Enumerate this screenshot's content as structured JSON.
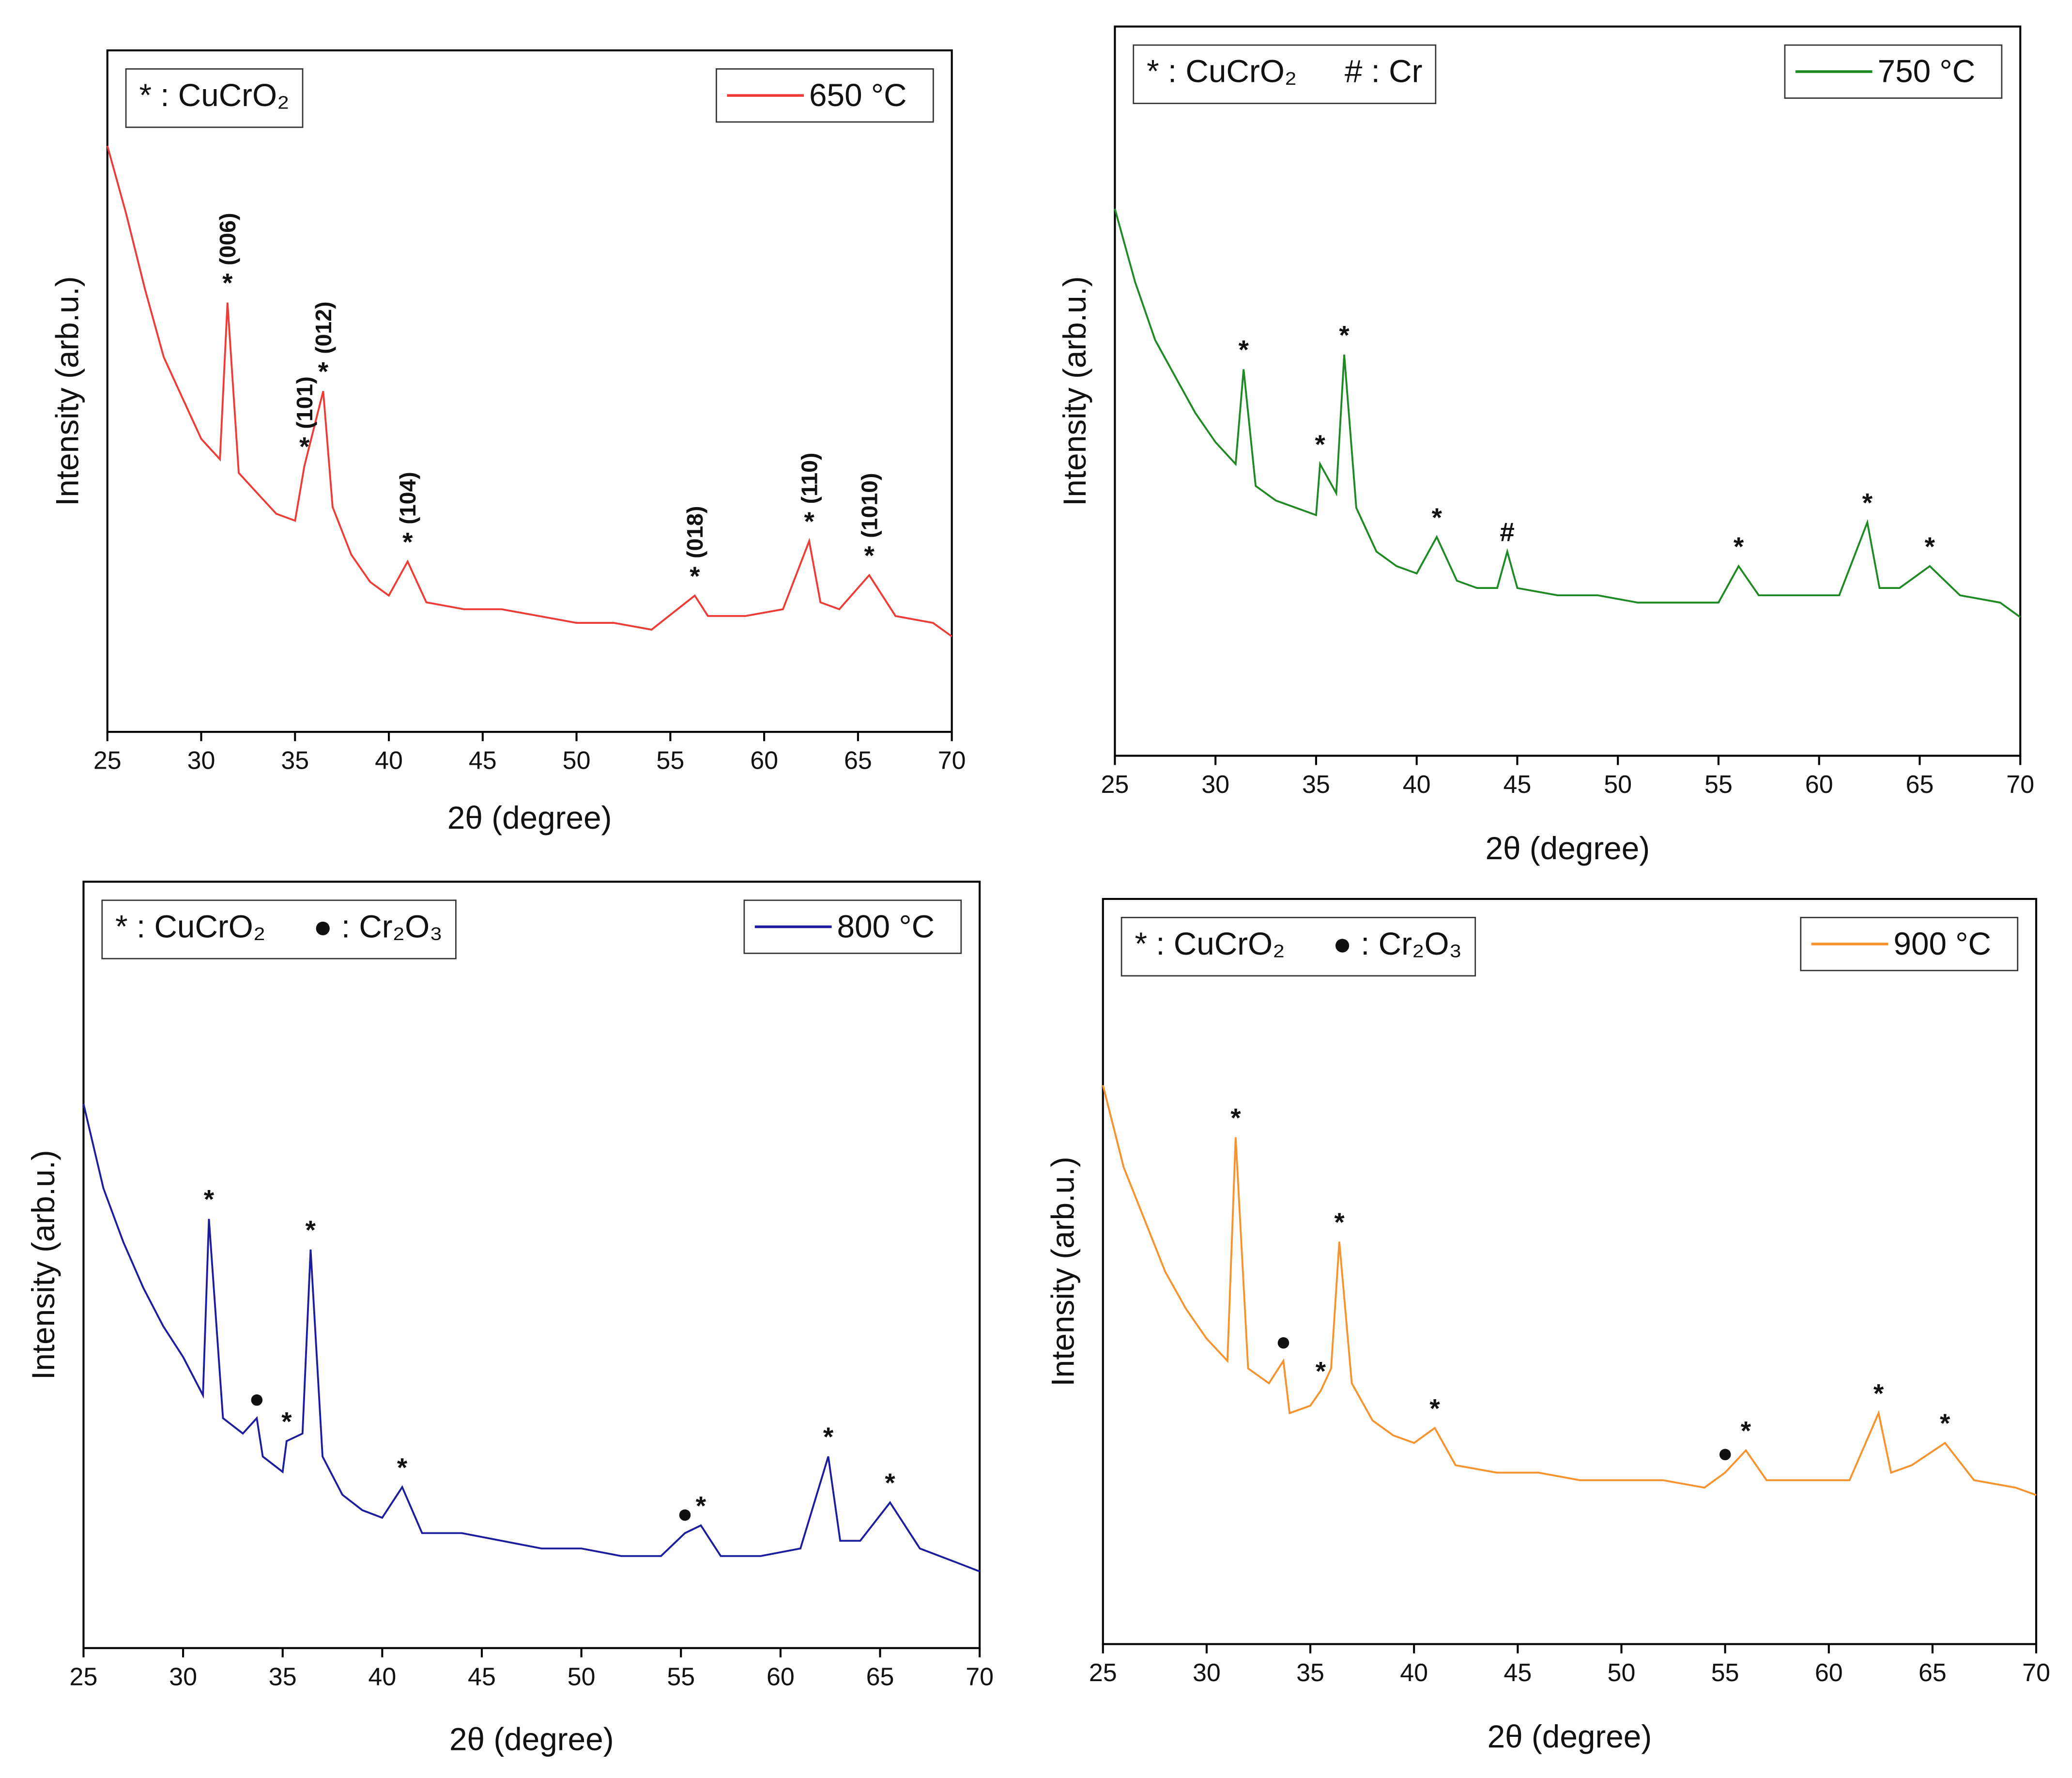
{
  "chart_data": [
    {
      "type": "line",
      "xlabel": "2θ (degree)",
      "ylabel": "Intensity (arb.u.)",
      "xlim": [
        25,
        70
      ],
      "xticks": [
        25,
        30,
        35,
        40,
        45,
        50,
        55,
        60,
        65,
        70
      ],
      "ylim": [
        0,
        100
      ],
      "legend_position": "upper right",
      "phase_key": [
        "* : CuCrO₂"
      ],
      "x": [
        25,
        26,
        27,
        28,
        29,
        30,
        31,
        31.4,
        32,
        33,
        34,
        35,
        35.5,
        36.5,
        37,
        38,
        39,
        40,
        41,
        42,
        44,
        46,
        48,
        50,
        52,
        54,
        56.3,
        57,
        59,
        61,
        62.4,
        63,
        64,
        65.6,
        67,
        69,
        70
      ],
      "series": [
        {
          "name": "650 °C",
          "color": "#ef3b36",
          "values": [
            86,
            76,
            65,
            55,
            49,
            43,
            40,
            63,
            38,
            35,
            32,
            31,
            39,
            50,
            33,
            26,
            22,
            20,
            25,
            19,
            18,
            18,
            17,
            16,
            16,
            15,
            20,
            17,
            17,
            18,
            28,
            19,
            18,
            23,
            17,
            16,
            14
          ]
        }
      ],
      "annotations": [
        {
          "text": "*",
          "x": 31.4,
          "label": "(006)"
        },
        {
          "text": "*",
          "x": 35.5,
          "label": "(101)"
        },
        {
          "text": "*",
          "x": 36.5,
          "label": "(012)"
        },
        {
          "text": "*",
          "x": 41,
          "label": "(104)"
        },
        {
          "text": "*",
          "x": 56.3,
          "label": "(018)"
        },
        {
          "text": "*",
          "x": 62.4,
          "label": "(110)"
        },
        {
          "text": "*",
          "x": 65.6,
          "label": "(1010)"
        }
      ]
    },
    {
      "type": "line",
      "xlabel": "2θ (degree)",
      "ylabel": "Intensity (arb.u.)",
      "xlim": [
        25,
        70
      ],
      "xticks": [
        25,
        30,
        35,
        40,
        45,
        50,
        55,
        60,
        65,
        70
      ],
      "ylim": [
        0,
        100
      ],
      "legend_position": "upper right",
      "phase_key": [
        "* : CuCrO₂",
        "# : Cr"
      ],
      "x": [
        25,
        26,
        27,
        28,
        29,
        30,
        31,
        31.4,
        32,
        33,
        34,
        35,
        35.2,
        36,
        36.4,
        37,
        38,
        39,
        40,
        41,
        42,
        43,
        44,
        44.5,
        45,
        47,
        49,
        51,
        53,
        55,
        56,
        57,
        59,
        61,
        62.4,
        63,
        64,
        65.5,
        67,
        69,
        70
      ],
      "series": [
        {
          "name": "750 °C",
          "color": "#1f8a24",
          "values": [
            75,
            65,
            57,
            52,
            47,
            43,
            40,
            53,
            37,
            35,
            34,
            33,
            40,
            36,
            55,
            34,
            28,
            26,
            25,
            30,
            24,
            23,
            23,
            28,
            23,
            22,
            22,
            21,
            21,
            21,
            26,
            22,
            22,
            22,
            32,
            23,
            23,
            26,
            22,
            21,
            19
          ]
        }
      ],
      "annotations": [
        {
          "text": "*",
          "x": 31.4
        },
        {
          "text": "*",
          "x": 35.2
        },
        {
          "text": "*",
          "x": 36.4
        },
        {
          "text": "*",
          "x": 41
        },
        {
          "text": "#",
          "x": 44.5
        },
        {
          "text": "*",
          "x": 56
        },
        {
          "text": "*",
          "x": 62.4
        },
        {
          "text": "*",
          "x": 65.5
        }
      ]
    },
    {
      "type": "line",
      "xlabel": "2θ (degree)",
      "ylabel": "Intensity (arb.u.)",
      "xlim": [
        25,
        70
      ],
      "xticks": [
        25,
        30,
        35,
        40,
        45,
        50,
        55,
        60,
        65,
        70
      ],
      "ylim": [
        0,
        100
      ],
      "legend_position": "upper right",
      "phase_key": [
        "* : CuCrO₂",
        "● : Cr₂O₃"
      ],
      "x": [
        25,
        26,
        27,
        28,
        29,
        30,
        31,
        31.3,
        32,
        33,
        33.7,
        34,
        35,
        35.2,
        36,
        36.4,
        37,
        38,
        39,
        40,
        41,
        42,
        44,
        46,
        48,
        50,
        52,
        54,
        55.2,
        56,
        57,
        59,
        61,
        62.4,
        63,
        64,
        65.5,
        67,
        69,
        70
      ],
      "series": [
        {
          "name": "800 °C",
          "color": "#1c1c9e",
          "values": [
            71,
            60,
            53,
            47,
            42,
            38,
            33,
            56,
            30,
            28,
            30,
            25,
            23,
            27,
            28,
            52,
            25,
            20,
            18,
            17,
            21,
            15,
            15,
            14,
            13,
            13,
            12,
            12,
            15,
            16,
            12,
            12,
            13,
            25,
            14,
            14,
            19,
            13,
            11,
            10
          ]
        }
      ],
      "annotations": [
        {
          "text": "*",
          "x": 31.3
        },
        {
          "text": "●",
          "x": 33.7
        },
        {
          "text": "*",
          "x": 35.2
        },
        {
          "text": "*",
          "x": 36.4
        },
        {
          "text": "*",
          "x": 41
        },
        {
          "text": "●",
          "x": 55.2
        },
        {
          "text": "*",
          "x": 56
        },
        {
          "text": "*",
          "x": 62.4
        },
        {
          "text": "*",
          "x": 65.5
        }
      ]
    },
    {
      "type": "line",
      "xlabel": "2θ (degree)",
      "ylabel": "Intensity (arb.u.)",
      "xlim": [
        25,
        70
      ],
      "xticks": [
        25,
        30,
        35,
        40,
        45,
        50,
        55,
        60,
        65,
        70
      ],
      "ylim": [
        0,
        100
      ],
      "legend_position": "upper right",
      "phase_key": [
        "* : CuCrO₂",
        "● : Cr₂O₃"
      ],
      "x": [
        25,
        26,
        27,
        28,
        29,
        30,
        31,
        31.4,
        32,
        33,
        33.7,
        34,
        35,
        35.5,
        36,
        36.4,
        37,
        38,
        39,
        40,
        41,
        42,
        44,
        46,
        48,
        50,
        52,
        54,
        55,
        56,
        57,
        59,
        61,
        62.4,
        63,
        64,
        65.6,
        67,
        69,
        70
      ],
      "series": [
        {
          "name": "900 °C",
          "color": "#f7922c",
          "values": [
            75,
            64,
            57,
            50,
            45,
            41,
            38,
            68,
            37,
            35,
            38,
            31,
            32,
            34,
            37,
            54,
            35,
            30,
            28,
            27,
            29,
            24,
            23,
            23,
            22,
            22,
            22,
            21,
            23,
            26,
            22,
            22,
            22,
            31,
            23,
            24,
            27,
            22,
            21,
            20
          ]
        }
      ],
      "annotations": [
        {
          "text": "*",
          "x": 31.4
        },
        {
          "text": "●",
          "x": 33.7
        },
        {
          "text": "*",
          "x": 35.5
        },
        {
          "text": "*",
          "x": 36.4
        },
        {
          "text": "*",
          "x": 41
        },
        {
          "text": "●",
          "x": 55
        },
        {
          "text": "*",
          "x": 56
        },
        {
          "text": "*",
          "x": 62.4
        },
        {
          "text": "*",
          "x": 65.6
        }
      ]
    }
  ]
}
